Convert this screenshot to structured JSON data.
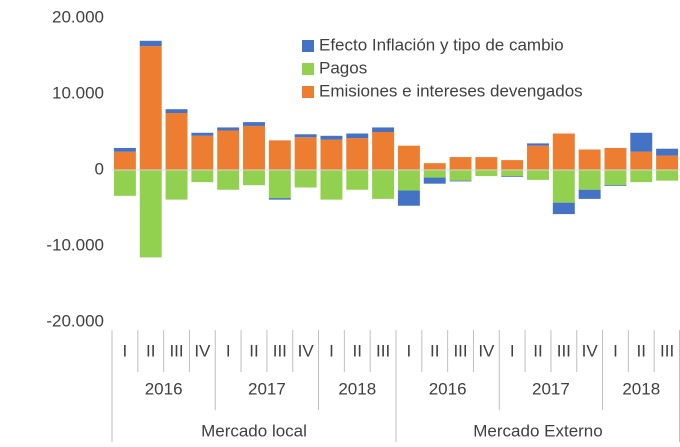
{
  "chart_data": {
    "type": "stacked_bar",
    "groups": [
      {
        "name": "Mercado local",
        "years": [
          {
            "name": "2016",
            "quarters": [
              "I",
              "II",
              "III",
              "IV"
            ]
          },
          {
            "name": "2017",
            "quarters": [
              "I",
              "II",
              "III",
              "IV"
            ]
          },
          {
            "name": "2018",
            "quarters": [
              "I",
              "II",
              "III"
            ]
          }
        ]
      },
      {
        "name": "Mercado Externo",
        "years": [
          {
            "name": "2016",
            "quarters": [
              "I",
              "II",
              "III",
              "IV"
            ]
          },
          {
            "name": "2017",
            "quarters": [
              "I",
              "II",
              "III",
              "IV"
            ]
          },
          {
            "name": "2018",
            "quarters": [
              "I",
              "II",
              "III"
            ]
          }
        ]
      }
    ],
    "series": [
      {
        "name": "Emisiones e intereses devengados",
        "color": "#ed7d31",
        "values": [
          2400,
          16300,
          7500,
          4500,
          5200,
          5800,
          3900,
          4300,
          4000,
          4200,
          5000,
          3200,
          900,
          1700,
          1700,
          1300,
          3200,
          4800,
          2700,
          2900,
          2400,
          1900
        ]
      },
      {
        "name": "Pagos",
        "color": "#92d050",
        "values": [
          -3400,
          -11500,
          -3900,
          -1600,
          -2600,
          -2000,
          -3700,
          -2300,
          -3900,
          -2600,
          -3800,
          -2700,
          -1000,
          -1400,
          -800,
          -800,
          -1300,
          -4300,
          -2600,
          -2000,
          -1600,
          -1400
        ]
      },
      {
        "name": "Efecto Inflación y tipo de cambio",
        "color": "#4472c4",
        "values": [
          500,
          700,
          500,
          400,
          400,
          500,
          -200,
          400,
          500,
          600,
          600,
          -2000,
          -800,
          -100,
          0,
          -100,
          300,
          -1500,
          -1200,
          -100,
          2500,
          900
        ]
      }
    ],
    "ylim": [
      -20000,
      20000
    ],
    "yticks": [
      {
        "value": -20000,
        "label": "-20.000"
      },
      {
        "value": -10000,
        "label": "-10.000"
      },
      0,
      {
        "value": 10000,
        "label": "10.000"
      },
      {
        "value": 20000,
        "label": "20.000"
      }
    ]
  }
}
